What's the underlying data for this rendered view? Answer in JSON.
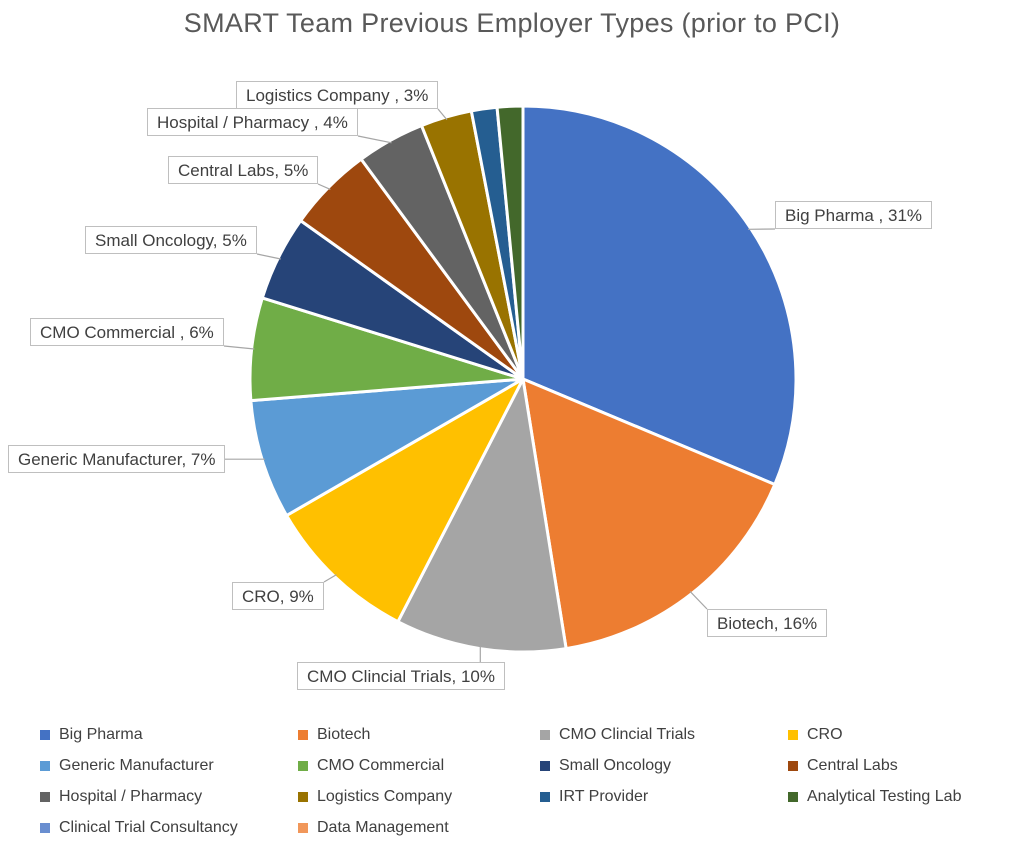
{
  "title": "SMART Team Previous Employer Types (prior to PCI)",
  "chart_data": {
    "type": "pie",
    "title": "SMART Team Previous Employer Types (prior to PCI)",
    "legend_position": "bottom",
    "start_angle_deg": 0,
    "direction": "clockwise",
    "slices": [
      {
        "label": "Big Pharma",
        "value": 31,
        "callout": "Big Pharma , 31%",
        "color": "#4472C4"
      },
      {
        "label": "Biotech",
        "value": 16,
        "callout": "Biotech, 16%",
        "color": "#ED7D31"
      },
      {
        "label": "CMO Clincial Trials",
        "value": 10,
        "callout": "CMO Clincial Trials, 10%",
        "color": "#A5A5A5"
      },
      {
        "label": "CRO",
        "value": 9,
        "callout": "CRO, 9%",
        "color": "#FFC000"
      },
      {
        "label": "Generic Manufacturer",
        "value": 7,
        "callout": "Generic Manufacturer, 7%",
        "color": "#5B9BD5"
      },
      {
        "label": "CMO Commercial",
        "value": 6,
        "callout": "CMO Commercial , 6%",
        "color": "#70AD47"
      },
      {
        "label": "Small Oncology",
        "value": 5,
        "callout": "Small Oncology, 5%",
        "color": "#264478"
      },
      {
        "label": "Central Labs",
        "value": 5,
        "callout": "Central Labs, 5%",
        "color": "#9E480E"
      },
      {
        "label": "Hospital / Pharmacy",
        "value": 4,
        "callout": "Hospital / Pharmacy , 4%",
        "color": "#636363"
      },
      {
        "label": "Logistics Company",
        "value": 3,
        "callout": "Logistics Company , 3%",
        "color": "#997300"
      },
      {
        "label": "IRT Provider",
        "value": 1.5,
        "callout": null,
        "color": "#255E91"
      },
      {
        "label": "Analytical Testing Lab",
        "value": 1.5,
        "callout": null,
        "color": "#43682B"
      },
      {
        "label": "Clinical Trial Consultancy",
        "value": 0,
        "callout": null,
        "color": "#698ED0"
      },
      {
        "label": "Data Management",
        "value": 0,
        "callout": null,
        "color": "#F1975A"
      }
    ]
  },
  "styles": {
    "title_color": "#595959",
    "label_color": "#404040",
    "callout_border": "#BFBFBF",
    "leader_color": "#A6A6A6",
    "slice_stroke": "#FFFFFF",
    "background": "#FFFFFF"
  }
}
